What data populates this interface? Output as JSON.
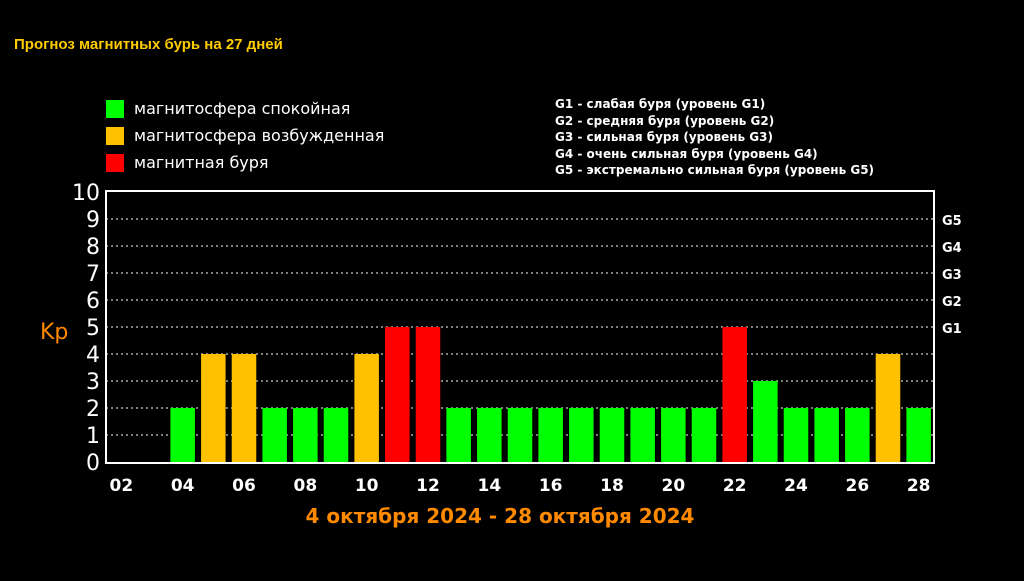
{
  "title": "Прогноз магнитных бурь на 27 дней",
  "legend_left": [
    {
      "label": "магнитосфера спокойная",
      "color": "#00ff00"
    },
    {
      "label": "магнитосфера возбужденная",
      "color": "#ffc000"
    },
    {
      "label": "магнитная буря",
      "color": "#ff0000"
    }
  ],
  "legend_right": [
    "G1 - слабая буря (уровень G1)",
    "G2 - средняя буря (уровень G2)",
    "G3 - сильная буря (уровень G3)",
    "G4 - очень сильная буря (уровень G4)",
    "G5 - экстремально сильная буря (уровень G5)"
  ],
  "date_range": "4 октября 2024 - 28 октября 2024",
  "chart_data": {
    "type": "bar",
    "ylabel": "Kp",
    "ylim": [
      0,
      10
    ],
    "y_ticks": [
      0,
      1,
      2,
      3,
      4,
      5,
      6,
      7,
      8,
      9,
      10
    ],
    "g_levels": [
      {
        "label": "G1",
        "kp": 5
      },
      {
        "label": "G2",
        "kp": 6
      },
      {
        "label": "G3",
        "kp": 7
      },
      {
        "label": "G4",
        "kp": 8
      },
      {
        "label": "G5",
        "kp": 9
      }
    ],
    "x_tick_labels": [
      "02",
      "04",
      "06",
      "08",
      "10",
      "12",
      "14",
      "16",
      "18",
      "20",
      "22",
      "24",
      "26",
      "28"
    ],
    "days": [
      2,
      3,
      4,
      5,
      6,
      7,
      8,
      9,
      10,
      11,
      12,
      13,
      14,
      15,
      16,
      17,
      18,
      19,
      20,
      21,
      22,
      23,
      24,
      25,
      26,
      27,
      28
    ],
    "values": [
      null,
      null,
      2,
      4,
      4,
      2,
      2,
      2,
      4,
      5,
      5,
      2,
      2,
      2,
      2,
      2,
      2,
      2,
      2,
      2,
      5,
      3,
      2,
      2,
      2,
      4,
      2
    ],
    "colors": {
      "quiet": "#00ff00",
      "excited": "#ffc000",
      "storm": "#ff0000"
    },
    "grid": true
  }
}
